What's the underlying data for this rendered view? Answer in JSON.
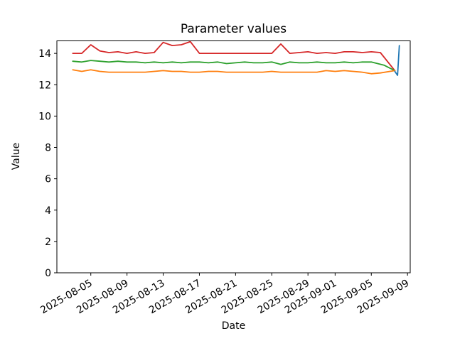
{
  "figure": {
    "title": "Parameter values",
    "background": "#ffffff",
    "frame_color": "#000000"
  },
  "chart_data": {
    "type": "line",
    "title": "Parameter values",
    "xlabel": "Date",
    "ylabel": "Value",
    "grid": false,
    "legend": "none",
    "x_epoch": "2025-08-03",
    "x_unit": "days since 2025-08-03",
    "xlim": [
      -1.75,
      37.3
    ],
    "ylim": [
      0,
      14.8
    ],
    "y_ticks": [
      0,
      2,
      4,
      6,
      8,
      10,
      12,
      14
    ],
    "x_ticks": {
      "positions": [
        2,
        6,
        10,
        14,
        18,
        22,
        26,
        29,
        33,
        37
      ],
      "labels": [
        "2025-08-05",
        "2025-08-09",
        "2025-08-13",
        "2025-08-17",
        "2025-08-21",
        "2025-08-25",
        "2025-08-29",
        "2025-09-01",
        "2025-09-05",
        "2025-09-09"
      ],
      "rotation_deg": -30
    },
    "series": [
      {
        "name": "red",
        "color": "#d62728",
        "points": [
          [
            0,
            14.0
          ],
          [
            1,
            14.0
          ],
          [
            2,
            14.55
          ],
          [
            3,
            14.15
          ],
          [
            4,
            14.05
          ],
          [
            5,
            14.1
          ],
          [
            6,
            14.0
          ],
          [
            7,
            14.1
          ],
          [
            8,
            14.0
          ],
          [
            9,
            14.05
          ],
          [
            10,
            14.7
          ],
          [
            11,
            14.5
          ],
          [
            12,
            14.55
          ],
          [
            13,
            14.75
          ],
          [
            14,
            14.0
          ],
          [
            15,
            14.0
          ],
          [
            16,
            14.0
          ],
          [
            17,
            14.0
          ],
          [
            18,
            14.0
          ],
          [
            19,
            14.0
          ],
          [
            20,
            14.0
          ],
          [
            21,
            14.0
          ],
          [
            22,
            14.0
          ],
          [
            23,
            14.6
          ],
          [
            24,
            14.0
          ],
          [
            25,
            14.05
          ],
          [
            26,
            14.1
          ],
          [
            27,
            14.0
          ],
          [
            28,
            14.05
          ],
          [
            29,
            14.0
          ],
          [
            30,
            14.1
          ],
          [
            31,
            14.1
          ],
          [
            32,
            14.05
          ],
          [
            33,
            14.1
          ],
          [
            34,
            14.05
          ],
          [
            35.6,
            12.9
          ]
        ]
      },
      {
        "name": "green",
        "color": "#2ca02c",
        "points": [
          [
            0,
            13.5
          ],
          [
            1,
            13.45
          ],
          [
            2,
            13.55
          ],
          [
            3,
            13.5
          ],
          [
            4,
            13.45
          ],
          [
            5,
            13.5
          ],
          [
            6,
            13.45
          ],
          [
            7,
            13.45
          ],
          [
            8,
            13.4
          ],
          [
            9,
            13.45
          ],
          [
            10,
            13.4
          ],
          [
            11,
            13.45
          ],
          [
            12,
            13.4
          ],
          [
            13,
            13.45
          ],
          [
            14,
            13.45
          ],
          [
            15,
            13.4
          ],
          [
            16,
            13.45
          ],
          [
            17,
            13.35
          ],
          [
            18,
            13.4
          ],
          [
            19,
            13.45
          ],
          [
            20,
            13.4
          ],
          [
            21,
            13.4
          ],
          [
            22,
            13.45
          ],
          [
            23,
            13.3
          ],
          [
            24,
            13.45
          ],
          [
            25,
            13.4
          ],
          [
            26,
            13.4
          ],
          [
            27,
            13.45
          ],
          [
            28,
            13.4
          ],
          [
            29,
            13.4
          ],
          [
            30,
            13.45
          ],
          [
            31,
            13.4
          ],
          [
            32,
            13.45
          ],
          [
            33,
            13.45
          ],
          [
            34.4,
            13.25
          ],
          [
            35.6,
            12.9
          ]
        ]
      },
      {
        "name": "orange",
        "color": "#ff7f0e",
        "points": [
          [
            0,
            12.95
          ],
          [
            1,
            12.85
          ],
          [
            2,
            12.95
          ],
          [
            3,
            12.85
          ],
          [
            4,
            12.8
          ],
          [
            5,
            12.8
          ],
          [
            6,
            12.8
          ],
          [
            7,
            12.8
          ],
          [
            8,
            12.8
          ],
          [
            9,
            12.85
          ],
          [
            10,
            12.9
          ],
          [
            11,
            12.85
          ],
          [
            12,
            12.85
          ],
          [
            13,
            12.8
          ],
          [
            14,
            12.8
          ],
          [
            15,
            12.85
          ],
          [
            16,
            12.85
          ],
          [
            17,
            12.8
          ],
          [
            18,
            12.8
          ],
          [
            19,
            12.8
          ],
          [
            20,
            12.8
          ],
          [
            21,
            12.8
          ],
          [
            22,
            12.85
          ],
          [
            23,
            12.8
          ],
          [
            24,
            12.8
          ],
          [
            25,
            12.8
          ],
          [
            26,
            12.8
          ],
          [
            27,
            12.8
          ],
          [
            28,
            12.9
          ],
          [
            29,
            12.85
          ],
          [
            30,
            12.9
          ],
          [
            31,
            12.85
          ],
          [
            32,
            12.8
          ],
          [
            33,
            12.7
          ],
          [
            34,
            12.75
          ],
          [
            35.6,
            12.9
          ]
        ]
      },
      {
        "name": "blue",
        "color": "#1f77b4",
        "points": [
          [
            35.6,
            12.85
          ],
          [
            35.9,
            12.6
          ],
          [
            36.1,
            14.5
          ]
        ]
      }
    ]
  }
}
